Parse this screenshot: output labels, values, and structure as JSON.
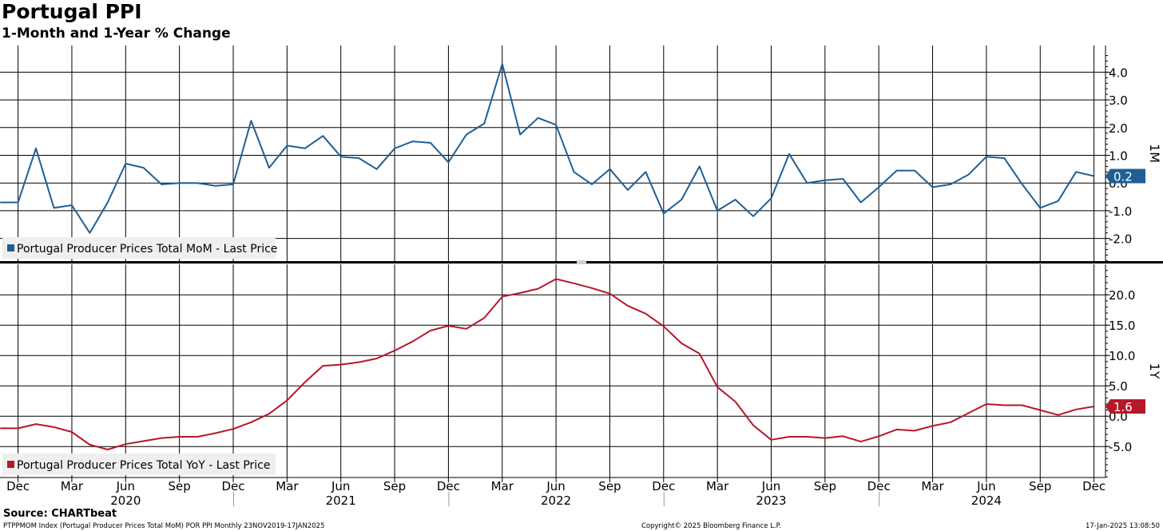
{
  "header": {
    "title": "Portugal PPI",
    "subtitle": "1-Month and 1-Year % Change"
  },
  "footer": {
    "source": "Source: CHARTbeat",
    "ticker": "PTPPMOM Index (Portugal Producer Prices Total  MoM) POR PPI  Monthly 23NOV2019-17JAN2025",
    "copyright": "Copyright© 2025 Bloomberg Finance L.P.",
    "timestamp": "17-Jan-2025 13:08:50"
  },
  "colors": {
    "mom": "#1f5f96",
    "yoy": "#b5182a",
    "grid": "#000000"
  },
  "chart_data": [
    {
      "type": "line",
      "panel": "top",
      "axis_label": "1M",
      "ylim": [
        -3,
        4.8
      ],
      "yticks": [
        -2.0,
        -1.0,
        0.0,
        1.0,
        2.0,
        3.0,
        4.0
      ],
      "ytick_labels": [
        "-2.0",
        "-1.0",
        "0.0",
        "1.0",
        "2.0",
        "3.0",
        "4.0"
      ],
      "last_value_label": "0.2",
      "legend": "Portugal Producer Prices Total MoM - Last Price",
      "series": [
        {
          "name": "Portugal Producer Prices Total MoM - Last Price",
          "x": [
            "2019-11",
            "2019-12",
            "2020-01",
            "2020-02",
            "2020-03",
            "2020-04",
            "2020-05",
            "2020-06",
            "2020-07",
            "2020-08",
            "2020-09",
            "2020-10",
            "2020-11",
            "2020-12",
            "2021-01",
            "2021-02",
            "2021-03",
            "2021-04",
            "2021-05",
            "2021-06",
            "2021-07",
            "2021-08",
            "2021-09",
            "2021-10",
            "2021-11",
            "2021-12",
            "2022-01",
            "2022-02",
            "2022-03",
            "2022-04",
            "2022-05",
            "2022-06",
            "2022-07",
            "2022-08",
            "2022-09",
            "2022-10",
            "2022-11",
            "2022-12",
            "2023-01",
            "2023-02",
            "2023-03",
            "2023-04",
            "2023-05",
            "2023-06",
            "2023-07",
            "2023-08",
            "2023-09",
            "2023-10",
            "2023-11",
            "2023-12",
            "2024-01",
            "2024-02",
            "2024-03",
            "2024-04",
            "2024-05",
            "2024-06",
            "2024-07",
            "2024-08",
            "2024-09",
            "2024-10",
            "2024-11",
            "2024-12"
          ],
          "y": [
            -0.7,
            -0.7,
            1.25,
            -0.9,
            -0.8,
            -1.8,
            -0.7,
            0.7,
            0.55,
            -0.05,
            0.0,
            0.0,
            -0.1,
            -0.05,
            2.25,
            0.55,
            1.35,
            1.25,
            1.7,
            0.95,
            0.9,
            0.5,
            1.25,
            1.5,
            1.45,
            0.75,
            1.75,
            2.15,
            4.3,
            1.75,
            2.35,
            2.1,
            0.4,
            -0.05,
            0.5,
            -0.25,
            0.4,
            -1.1,
            -0.6,
            0.6,
            -1.0,
            -0.6,
            -1.2,
            -0.55,
            1.05,
            0.0,
            0.1,
            0.15,
            -0.7,
            -0.15,
            0.45,
            0.45,
            -0.15,
            -0.05,
            0.3,
            0.95,
            0.9,
            -0.05,
            -0.9,
            -0.65,
            0.4,
            0.25
          ]
        }
      ]
    },
    {
      "type": "line",
      "panel": "bottom",
      "axis_label": "1Y",
      "ylim": [
        -10,
        24.5
      ],
      "yticks": [
        -5.0,
        0.0,
        5.0,
        10.0,
        15.0,
        20.0
      ],
      "ytick_labels": [
        "-5.0",
        "0.0",
        "5.0",
        "10.0",
        "15.0",
        "20.0"
      ],
      "last_value_label": "1.6",
      "legend": "Portugal Producer Prices Total YoY - Last Price",
      "series": [
        {
          "name": "Portugal Producer Prices Total YoY - Last Price",
          "x": [
            "2019-11",
            "2019-12",
            "2020-01",
            "2020-02",
            "2020-03",
            "2020-04",
            "2020-05",
            "2020-06",
            "2020-07",
            "2020-08",
            "2020-09",
            "2020-10",
            "2020-11",
            "2020-12",
            "2021-01",
            "2021-02",
            "2021-03",
            "2021-04",
            "2021-05",
            "2021-06",
            "2021-07",
            "2021-08",
            "2021-09",
            "2021-10",
            "2021-11",
            "2021-12",
            "2022-01",
            "2022-02",
            "2022-03",
            "2022-04",
            "2022-05",
            "2022-06",
            "2022-07",
            "2022-08",
            "2022-09",
            "2022-10",
            "2022-11",
            "2022-12",
            "2023-01",
            "2023-02",
            "2023-03",
            "2023-04",
            "2023-05",
            "2023-06",
            "2023-07",
            "2023-08",
            "2023-09",
            "2023-10",
            "2023-11",
            "2023-12",
            "2024-01",
            "2024-02",
            "2024-03",
            "2024-04",
            "2024-05",
            "2024-06",
            "2024-07",
            "2024-08",
            "2024-09",
            "2024-10",
            "2024-11",
            "2024-12"
          ],
          "y": [
            -2.0,
            -2.0,
            -1.3,
            -1.8,
            -2.6,
            -4.7,
            -5.5,
            -4.6,
            -4.1,
            -3.6,
            -3.4,
            -3.4,
            -2.8,
            -2.1,
            -1.0,
            0.4,
            2.6,
            5.6,
            8.3,
            8.5,
            8.9,
            9.5,
            10.8,
            12.3,
            14.1,
            14.9,
            14.4,
            16.2,
            19.7,
            20.3,
            21.0,
            22.6,
            21.9,
            21.1,
            20.2,
            18.2,
            16.9,
            14.8,
            12.0,
            10.3,
            4.8,
            2.4,
            -1.5,
            -3.9,
            -3.4,
            -3.4,
            -3.6,
            -3.3,
            -4.2,
            -3.3,
            -2.2,
            -2.4,
            -1.6,
            -1.0,
            0.5,
            2.0,
            1.8,
            1.8,
            1.0,
            0.2,
            1.1,
            1.6
          ]
        }
      ]
    }
  ],
  "x_axis": {
    "month_labels": [
      {
        "date": "2019-12",
        "label": "Dec"
      },
      {
        "date": "2020-03",
        "label": "Mar"
      },
      {
        "date": "2020-06",
        "label": "Jun"
      },
      {
        "date": "2020-09",
        "label": "Sep"
      },
      {
        "date": "2020-12",
        "label": "Dec"
      },
      {
        "date": "2021-03",
        "label": "Mar"
      },
      {
        "date": "2021-06",
        "label": "Jun"
      },
      {
        "date": "2021-09",
        "label": "Sep"
      },
      {
        "date": "2021-12",
        "label": "Dec"
      },
      {
        "date": "2022-03",
        "label": "Mar"
      },
      {
        "date": "2022-06",
        "label": "Jun"
      },
      {
        "date": "2022-09",
        "label": "Sep"
      },
      {
        "date": "2022-12",
        "label": "Dec"
      },
      {
        "date": "2023-03",
        "label": "Mar"
      },
      {
        "date": "2023-06",
        "label": "Jun"
      },
      {
        "date": "2023-09",
        "label": "Sep"
      },
      {
        "date": "2023-12",
        "label": "Dec"
      },
      {
        "date": "2024-03",
        "label": "Mar"
      },
      {
        "date": "2024-06",
        "label": "Jun"
      },
      {
        "date": "2024-09",
        "label": "Sep"
      },
      {
        "date": "2024-12",
        "label": "Dec"
      }
    ],
    "year_labels": [
      {
        "date": "2020-06",
        "label": "2020"
      },
      {
        "date": "2021-06",
        "label": "2021"
      },
      {
        "date": "2022-06",
        "label": "2022"
      },
      {
        "date": "2023-06",
        "label": "2023"
      },
      {
        "date": "2024-06",
        "label": "2024"
      }
    ]
  }
}
